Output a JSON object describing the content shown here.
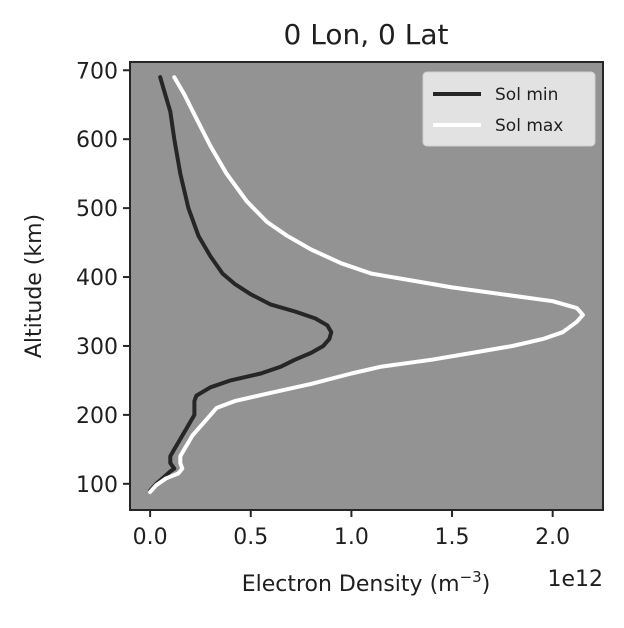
{
  "chart_data": {
    "type": "line",
    "title": "0 Lon, 0 Lat",
    "xlabel": "Electron Density (m",
    "xlabel_sup": "−3",
    "xlabel_close": ")",
    "x_offset_label": "1e12",
    "ylabel": "Altitude (km)",
    "xlim": [
      -0.1,
      2.25
    ],
    "ylim": [
      62,
      712
    ],
    "x_ticks": [
      {
        "value": 0.0,
        "label": "0.0"
      },
      {
        "value": 0.5,
        "label": "0.5"
      },
      {
        "value": 1.0,
        "label": "1.0"
      },
      {
        "value": 1.5,
        "label": "1.5"
      },
      {
        "value": 2.0,
        "label": "2.0"
      }
    ],
    "y_ticks": [
      {
        "value": 100,
        "label": "100"
      },
      {
        "value": 200,
        "label": "200"
      },
      {
        "value": 300,
        "label": "300"
      },
      {
        "value": 400,
        "label": "400"
      },
      {
        "value": 500,
        "label": "500"
      },
      {
        "value": 600,
        "label": "600"
      },
      {
        "value": 700,
        "label": "700"
      }
    ],
    "background_color": "#939393",
    "grid": false,
    "legend_position": "top-right",
    "series": [
      {
        "name": "Sol min",
        "color": "#262626",
        "points": [
          [
            0.0,
            90
          ],
          [
            0.03,
            100
          ],
          [
            0.07,
            110
          ],
          [
            0.1,
            118
          ],
          [
            0.12,
            122
          ],
          [
            0.1,
            130
          ],
          [
            0.1,
            140
          ],
          [
            0.12,
            150
          ],
          [
            0.14,
            160
          ],
          [
            0.16,
            170
          ],
          [
            0.18,
            180
          ],
          [
            0.2,
            190
          ],
          [
            0.22,
            200
          ],
          [
            0.22,
            210
          ],
          [
            0.22,
            220
          ],
          [
            0.23,
            228
          ],
          [
            0.3,
            240
          ],
          [
            0.4,
            250
          ],
          [
            0.55,
            260
          ],
          [
            0.65,
            270
          ],
          [
            0.72,
            280
          ],
          [
            0.8,
            290
          ],
          [
            0.86,
            300
          ],
          [
            0.89,
            310
          ],
          [
            0.9,
            320
          ],
          [
            0.88,
            330
          ],
          [
            0.82,
            340
          ],
          [
            0.72,
            350
          ],
          [
            0.6,
            360
          ],
          [
            0.5,
            375
          ],
          [
            0.42,
            390
          ],
          [
            0.36,
            405
          ],
          [
            0.3,
            430
          ],
          [
            0.24,
            460
          ],
          [
            0.19,
            500
          ],
          [
            0.15,
            550
          ],
          [
            0.12,
            600
          ],
          [
            0.1,
            640
          ],
          [
            0.07,
            670
          ],
          [
            0.05,
            690
          ]
        ]
      },
      {
        "name": "Sol max",
        "color": "#ffffff",
        "points": [
          [
            0.0,
            88
          ],
          [
            0.03,
            98
          ],
          [
            0.08,
            108
          ],
          [
            0.14,
            115
          ],
          [
            0.16,
            122
          ],
          [
            0.15,
            130
          ],
          [
            0.15,
            140
          ],
          [
            0.17,
            150
          ],
          [
            0.19,
            160
          ],
          [
            0.21,
            170
          ],
          [
            0.24,
            180
          ],
          [
            0.27,
            190
          ],
          [
            0.3,
            200
          ],
          [
            0.33,
            210
          ],
          [
            0.42,
            220
          ],
          [
            0.6,
            232
          ],
          [
            0.8,
            245
          ],
          [
            1.0,
            260
          ],
          [
            1.15,
            270
          ],
          [
            1.4,
            280
          ],
          [
            1.6,
            290
          ],
          [
            1.8,
            300
          ],
          [
            1.95,
            310
          ],
          [
            2.05,
            320
          ],
          [
            2.12,
            335
          ],
          [
            2.15,
            345
          ],
          [
            2.12,
            355
          ],
          [
            2.0,
            365
          ],
          [
            1.75,
            375
          ],
          [
            1.5,
            385
          ],
          [
            1.3,
            395
          ],
          [
            1.1,
            405
          ],
          [
            0.95,
            420
          ],
          [
            0.8,
            440
          ],
          [
            0.68,
            460
          ],
          [
            0.58,
            480
          ],
          [
            0.48,
            510
          ],
          [
            0.38,
            550
          ],
          [
            0.3,
            590
          ],
          [
            0.23,
            630
          ],
          [
            0.17,
            665
          ],
          [
            0.12,
            690
          ]
        ]
      }
    ]
  }
}
